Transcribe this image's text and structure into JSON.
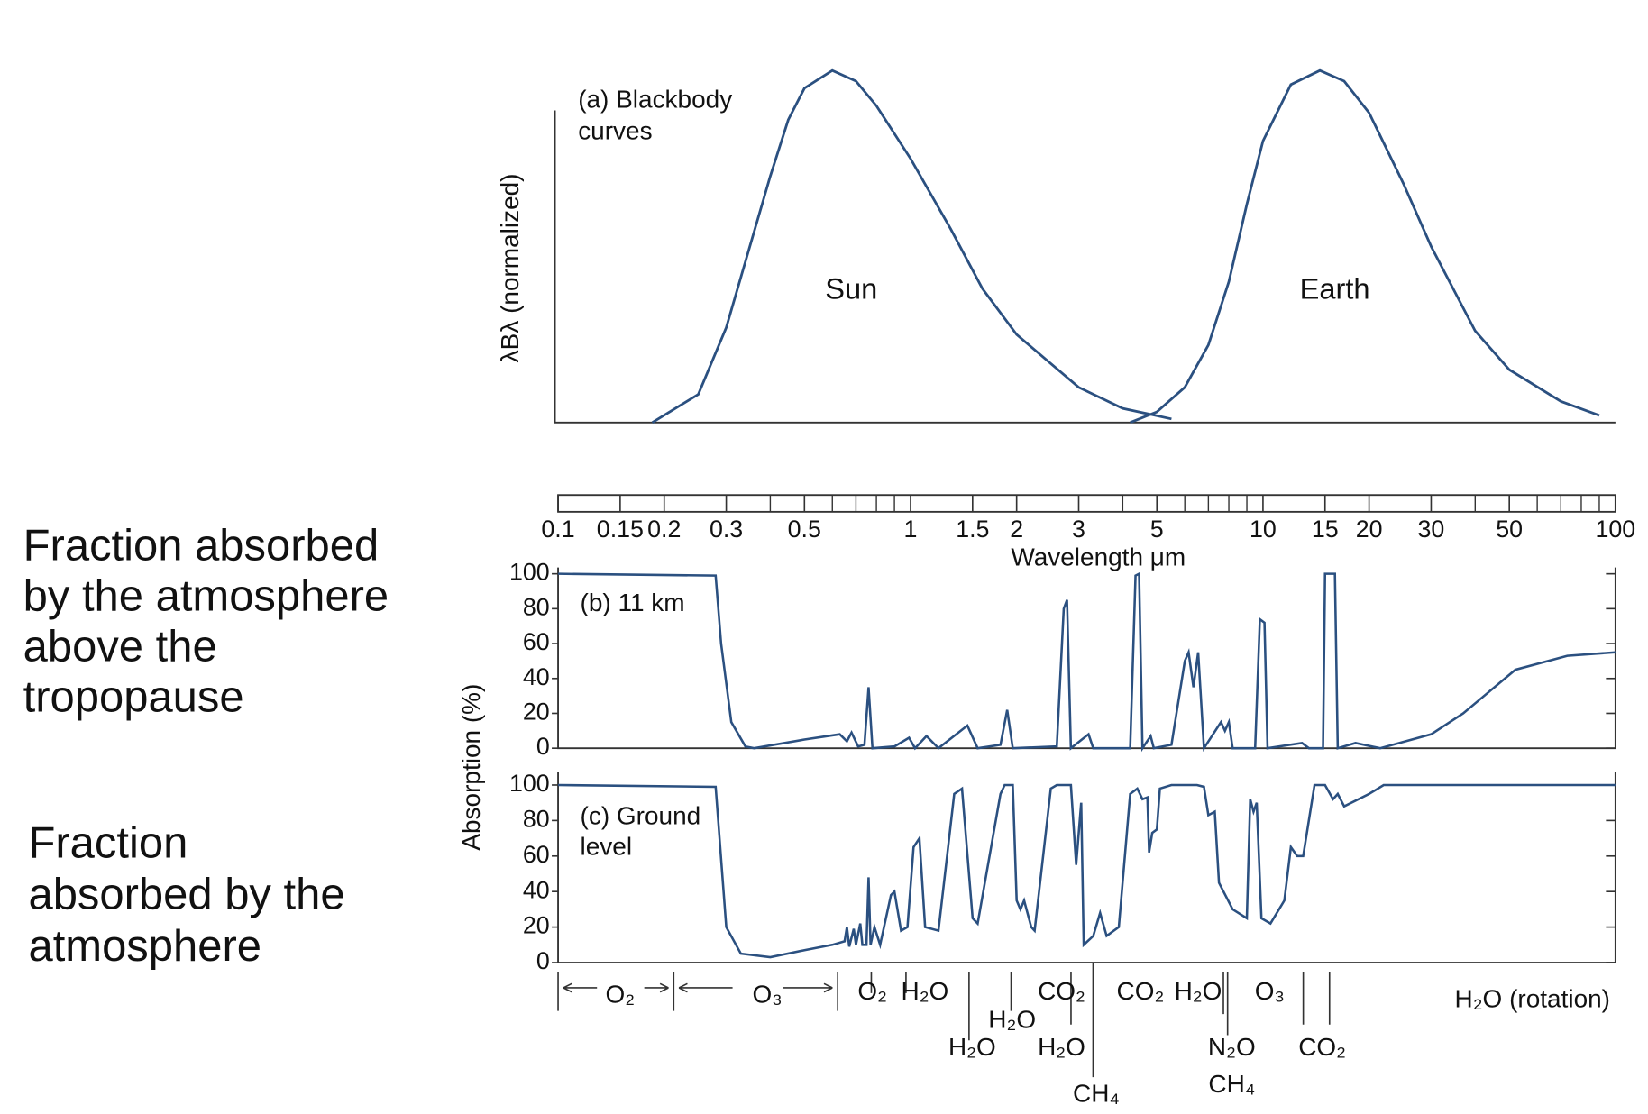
{
  "chart_data": [
    {
      "type": "line",
      "title": [
        "(a) Blackbody",
        "curves"
      ],
      "ylabel": "λBλ (normalized)",
      "xscale": "log",
      "xlim": [
        0.1,
        100
      ],
      "ylim": [
        0,
        1
      ],
      "series": [
        {
          "name": "Sun",
          "color": "#2b5080",
          "x": [
            0.185,
            0.25,
            0.3,
            0.35,
            0.4,
            0.45,
            0.5,
            0.6,
            0.7,
            0.8,
            1.0,
            1.3,
            1.6,
            2,
            3,
            4,
            5.5
          ],
          "values": [
            0,
            0.08,
            0.27,
            0.5,
            0.7,
            0.86,
            0.95,
            1.0,
            0.97,
            0.9,
            0.75,
            0.55,
            0.38,
            0.25,
            0.1,
            0.04,
            0.01
          ]
        },
        {
          "name": "Earth",
          "color": "#2b5080",
          "x": [
            4.2,
            5,
            6,
            7,
            8,
            9,
            10,
            12,
            14.5,
            17,
            20,
            25,
            30,
            40,
            50,
            70,
            90
          ],
          "values": [
            0,
            0.03,
            0.1,
            0.22,
            0.4,
            0.62,
            0.8,
            0.96,
            1.0,
            0.97,
            0.88,
            0.68,
            0.5,
            0.26,
            0.15,
            0.06,
            0.02
          ]
        }
      ]
    },
    {
      "type": "line",
      "title": [
        "(b) 11 km"
      ],
      "ylabel": "Absorption (%)",
      "xlabel": "Wavelength μm",
      "side_label": [
        "Fraction absorbed",
        "by the atmosphere",
        "above the",
        "tropopause"
      ],
      "xscale": "log",
      "xlim": [
        0.1,
        100
      ],
      "xticks": [
        0.1,
        0.15,
        0.2,
        0.3,
        0.5,
        1,
        1.5,
        2,
        3,
        5,
        10,
        15,
        20,
        30,
        50,
        100
      ],
      "xminorticks": [
        0.4,
        0.6,
        0.7,
        0.8,
        0.9,
        4,
        6,
        7,
        8,
        9,
        40,
        60,
        70,
        80,
        90
      ],
      "ylim": [
        0,
        100
      ],
      "yticks": [
        0,
        20,
        40,
        60,
        80,
        100
      ],
      "color": "#2b5080",
      "x": [
        0.1,
        0.28,
        0.29,
        0.31,
        0.34,
        0.36,
        0.5,
        0.63,
        0.66,
        0.68,
        0.71,
        0.74,
        0.76,
        0.78,
        0.9,
        0.99,
        1.03,
        1.11,
        1.2,
        1.45,
        1.55,
        1.8,
        1.88,
        1.95,
        2.6,
        2.72,
        2.78,
        2.85,
        3.2,
        3.3,
        4.2,
        4.35,
        4.45,
        4.55,
        4.8,
        4.9,
        5.5,
        6.0,
        6.15,
        6.35,
        6.55,
        6.8,
        7.6,
        7.8,
        8.0,
        8.2,
        9.5,
        9.8,
        10.1,
        10.3,
        12.9,
        13.5,
        14.8,
        15.0,
        16.0,
        16.3,
        18.3,
        21.5,
        30,
        37,
        52,
        73,
        100
      ],
      "values": [
        100,
        99,
        60,
        15,
        1,
        0,
        5,
        8,
        4,
        9,
        1,
        2,
        35,
        0,
        1,
        6,
        0,
        7,
        0,
        13,
        0,
        2,
        22,
        0,
        1,
        80,
        85,
        0,
        8,
        0,
        0,
        99,
        100,
        0,
        7,
        0,
        2,
        50,
        55,
        35,
        55,
        0,
        15,
        10,
        15,
        0,
        0,
        74,
        72,
        0,
        3,
        0,
        0,
        100,
        100,
        0,
        3,
        0,
        8,
        20,
        45,
        53,
        55
      ]
    },
    {
      "type": "line",
      "title": [
        "(c) Ground",
        "level"
      ],
      "side_label": [
        "Fraction",
        "absorbed by the",
        "atmosphere"
      ],
      "xscale": "log",
      "xlim": [
        0.1,
        100
      ],
      "ylim": [
        0,
        100
      ],
      "yticks": [
        0,
        20,
        40,
        60,
        80,
        100
      ],
      "color": "#2b5080",
      "x": [
        0.1,
        0.28,
        0.3,
        0.33,
        0.4,
        0.5,
        0.6,
        0.65,
        0.66,
        0.67,
        0.69,
        0.7,
        0.72,
        0.73,
        0.75,
        0.76,
        0.77,
        0.79,
        0.82,
        0.88,
        0.9,
        0.94,
        0.98,
        1.02,
        1.06,
        1.1,
        1.2,
        1.33,
        1.4,
        1.5,
        1.55,
        1.8,
        1.85,
        1.95,
        2.0,
        2.05,
        2.1,
        2.2,
        2.25,
        2.5,
        2.6,
        2.85,
        2.95,
        3.05,
        3.1,
        3.3,
        3.45,
        3.6,
        3.9,
        4.2,
        4.4,
        4.55,
        4.7,
        4.75,
        4.85,
        5.0,
        5.1,
        5.5,
        6.5,
        6.8,
        7.0,
        7.3,
        7.5,
        8.2,
        9.0,
        9.2,
        9.4,
        9.6,
        9.9,
        10.5,
        11.5,
        12.0,
        12.5,
        13.0,
        14.0,
        15.0,
        15.8,
        16.3,
        17,
        20,
        22,
        50,
        100
      ],
      "values": [
        100,
        99,
        20,
        5,
        3,
        7,
        10,
        12,
        20,
        9,
        19,
        10,
        22,
        10,
        10,
        48,
        10,
        20,
        10,
        38,
        40,
        18,
        20,
        65,
        70,
        20,
        18,
        95,
        98,
        25,
        22,
        95,
        100,
        100,
        35,
        30,
        35,
        20,
        18,
        98,
        100,
        100,
        55,
        90,
        10,
        15,
        28,
        15,
        20,
        95,
        98,
        92,
        93,
        62,
        73,
        75,
        98,
        100,
        100,
        99,
        83,
        85,
        45,
        30,
        25,
        92,
        85,
        90,
        25,
        22,
        35,
        65,
        60,
        60,
        100,
        100,
        92,
        95,
        88,
        95,
        100,
        100,
        100
      ],
      "annotations": [
        "O₂",
        "O₃",
        "O₂",
        "H₂O",
        "CO₂",
        "CO₂",
        "H₂O",
        "O₃",
        "H₂O (rotation)",
        "H₂O",
        "H₂O",
        "H₂O",
        "N₂O",
        "CO₂",
        "CH₄",
        "CH₄"
      ]
    }
  ]
}
